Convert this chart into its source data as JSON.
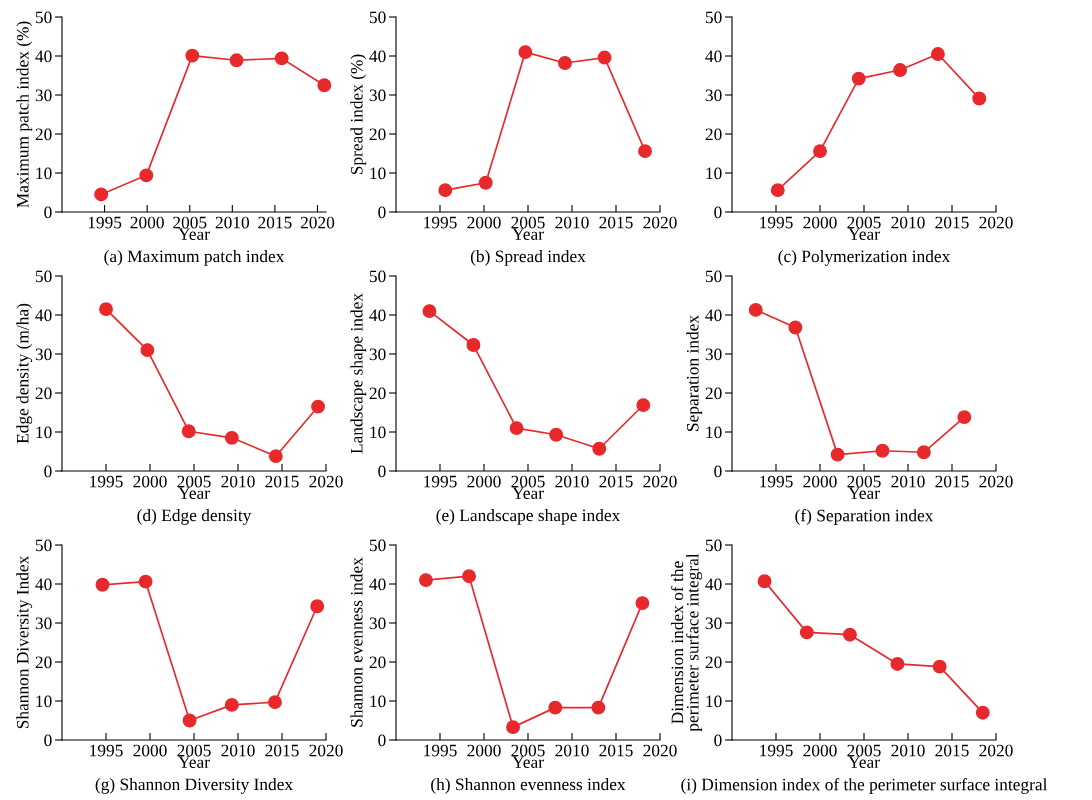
{
  "chart_data": [
    {
      "type": "line",
      "title": "(a) Maximum patch index",
      "xlabel": "Year",
      "ylabel": "Maximum patch index (%)",
      "x": [
        1994.6,
        1999.9,
        2005.3,
        2010.5,
        2015.8,
        2020.8
      ],
      "values": [
        4.5,
        9.4,
        40.1,
        38.9,
        39.4,
        32.5
      ],
      "color": "#e8292b",
      "marker": "circle",
      "xlim": [
        1990,
        2021
      ],
      "xticks": [
        1995,
        2000,
        2005,
        2010,
        2015,
        2020
      ],
      "ylim": [
        0,
        50
      ],
      "yticks": [
        0,
        10,
        20,
        30,
        40,
        50
      ],
      "grid": false,
      "legend": false
    },
    {
      "type": "line",
      "title": "(b) Spread index",
      "xlabel": "Year",
      "ylabel": "Spread index (%)",
      "x": [
        1995.6,
        2000.2,
        2004.7,
        2009.2,
        2013.7,
        2018.3
      ],
      "values": [
        5.6,
        7.5,
        41.0,
        38.2,
        39.6,
        15.6
      ],
      "color": "#e8292b",
      "marker": "circle",
      "xlim": [
        1990,
        2020
      ],
      "xticks": [
        1995,
        2000,
        2005,
        2010,
        2015,
        2020
      ],
      "ylim": [
        0,
        50
      ],
      "yticks": [
        0,
        10,
        20,
        30,
        40,
        50
      ],
      "grid": false,
      "legend": false
    },
    {
      "type": "line",
      "title": "(c) Polymerization index",
      "xlabel": "Year",
      "x": [
        1995.2,
        2000.0,
        2004.4,
        2009.1,
        2013.4,
        2018.1
      ],
      "values": [
        5.6,
        15.6,
        34.2,
        36.4,
        40.5,
        29.1
      ],
      "color": "#e8292b",
      "marker": "circle",
      "xlim": [
        1990,
        2020
      ],
      "xticks": [
        1995,
        2000,
        2005,
        2010,
        2015,
        2020
      ],
      "ylim": [
        0,
        50
      ],
      "yticks": [
        0,
        10,
        20,
        30,
        40,
        50
      ],
      "grid": false,
      "legend": false
    },
    {
      "type": "line",
      "title": "(d) Edge density",
      "xlabel": "Year",
      "ylabel": "Edge density (m/ha)",
      "x": [
        1995.0,
        1999.7,
        2004.4,
        2009.3,
        2014.3,
        2019.1
      ],
      "values": [
        41.5,
        31.0,
        10.2,
        8.5,
        3.8,
        16.5
      ],
      "color": "#e8292b",
      "marker": "circle",
      "xlim": [
        1990,
        2020
      ],
      "xticks": [
        1995,
        2000,
        2005,
        2010,
        2015,
        2020
      ],
      "ylim": [
        0,
        50
      ],
      "yticks": [
        0,
        10,
        20,
        30,
        40,
        50
      ],
      "grid": false,
      "legend": false
    },
    {
      "type": "line",
      "title": "(e) Landscape shape index",
      "xlabel": "Year",
      "ylabel": "Landscape shape index",
      "x": [
        1993.8,
        1998.8,
        2003.7,
        2008.2,
        2013.1,
        2018.1
      ],
      "values": [
        41.0,
        32.3,
        11.0,
        9.3,
        5.7,
        16.9
      ],
      "color": "#e8292b",
      "marker": "circle",
      "xlim": [
        1990,
        2020
      ],
      "xticks": [
        1995,
        2000,
        2005,
        2010,
        2015,
        2020
      ],
      "ylim": [
        0,
        50
      ],
      "yticks": [
        0,
        10,
        20,
        30,
        40,
        50
      ],
      "grid": false,
      "legend": false
    },
    {
      "type": "line",
      "title": "(f) Separation index",
      "xlabel": "Year",
      "ylabel": "Separation index",
      "x": [
        1992.7,
        1997.2,
        2002.0,
        2007.1,
        2011.8,
        2016.4
      ],
      "values": [
        41.3,
        36.8,
        4.2,
        5.2,
        4.8,
        13.8
      ],
      "color": "#e8292b",
      "marker": "circle",
      "xlim": [
        1990,
        2020
      ],
      "xticks": [
        1995,
        2000,
        2005,
        2010,
        2015,
        2020
      ],
      "ylim": [
        0,
        50
      ],
      "yticks": [
        0,
        10,
        20,
        30,
        40,
        50
      ],
      "grid": false,
      "legend": false
    },
    {
      "type": "line",
      "title": "(g) Shannon Diversity Index",
      "xlabel": "Year",
      "ylabel": "Shannon Diversity Index",
      "x": [
        1994.6,
        1999.5,
        2004.5,
        2009.3,
        2014.2,
        2019.0
      ],
      "values": [
        39.8,
        40.6,
        5.0,
        9.0,
        9.7,
        34.3
      ],
      "color": "#e8292b",
      "marker": "circle",
      "xlim": [
        1990,
        2020
      ],
      "xticks": [
        1995,
        2000,
        2005,
        2010,
        2015,
        2020
      ],
      "ylim": [
        0,
        50
      ],
      "yticks": [
        0,
        10,
        20,
        30,
        40,
        50
      ],
      "grid": false,
      "legend": false
    },
    {
      "type": "line",
      "title": "(h) Shannon evenness index",
      "xlabel": "Year",
      "ylabel": "Shannon evenness index",
      "x": [
        1993.4,
        1998.3,
        2003.3,
        2008.1,
        2013.0,
        2018.0
      ],
      "values": [
        41.0,
        42.0,
        3.3,
        8.3,
        8.3,
        35.1
      ],
      "color": "#e8292b",
      "marker": "circle",
      "xlim": [
        1990,
        2020
      ],
      "xticks": [
        1995,
        2000,
        2005,
        2010,
        2015,
        2020
      ],
      "ylim": [
        0,
        50
      ],
      "yticks": [
        0,
        10,
        20,
        30,
        40,
        50
      ],
      "grid": false,
      "legend": false
    },
    {
      "type": "line",
      "title": "(i) Dimension index of the perimeter surface integral",
      "xlabel": "Year",
      "ylabel": "Dimension index of the\nperimeter surface integral",
      "x": [
        1993.7,
        1998.5,
        2003.4,
        2008.8,
        2013.6,
        2018.5
      ],
      "values": [
        40.7,
        27.6,
        27.0,
        19.5,
        18.8,
        7.0
      ],
      "color": "#e8292b",
      "marker": "circle",
      "xlim": [
        1990,
        2020
      ],
      "xticks": [
        1995,
        2000,
        2005,
        2010,
        2015,
        2020
      ],
      "ylim": [
        0,
        50
      ],
      "yticks": [
        0,
        10,
        20,
        30,
        40,
        50
      ],
      "grid": false,
      "legend": false
    }
  ]
}
